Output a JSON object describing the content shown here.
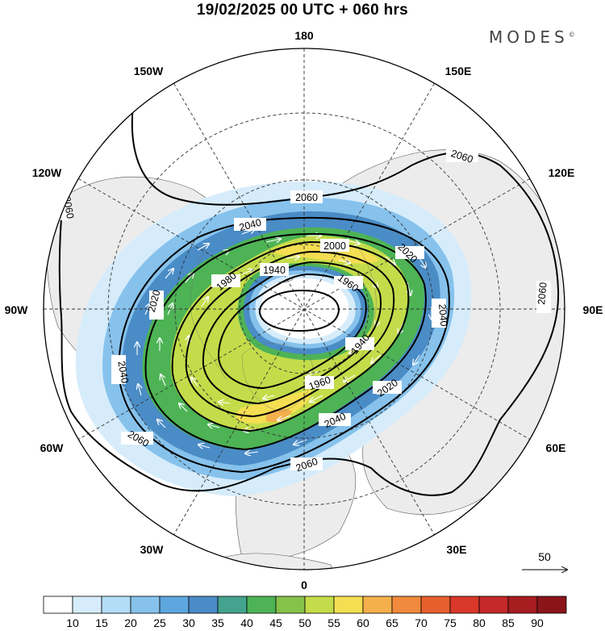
{
  "title": "19/02/2025  00 UTC  + 060 hrs",
  "brand": "MODES",
  "brand_mark": "©",
  "longitude_labels": [
    "180",
    "150E",
    "120E",
    "90E",
    "60E",
    "30E",
    "0",
    "30W",
    "60W",
    "90W",
    "120W",
    "150W"
  ],
  "contour_labels": [
    "2060",
    "2060",
    "2060",
    "2060",
    "2060",
    "2060",
    "2040",
    "2040",
    "2040",
    "2040",
    "2020",
    "2020",
    "2020",
    "2000",
    "1980",
    "1960",
    "1960",
    "1940",
    "1940"
  ],
  "reference_vector": "50",
  "colorbar": {
    "labels": [
      "10",
      "15",
      "20",
      "25",
      "30",
      "35",
      "40",
      "45",
      "50",
      "55",
      "60",
      "65",
      "70",
      "75",
      "80",
      "85",
      "90"
    ],
    "colors": [
      "#ffffff",
      "#d6ecfb",
      "#b3dcf6",
      "#86c2ec",
      "#5ea6de",
      "#4a8cc6",
      "#44a38e",
      "#4db355",
      "#85c24a",
      "#c4dc4a",
      "#f4de52",
      "#f4b04c",
      "#f08a3c",
      "#e6602e",
      "#d9382a",
      "#c42828",
      "#a71d20",
      "#8a1518"
    ]
  }
}
